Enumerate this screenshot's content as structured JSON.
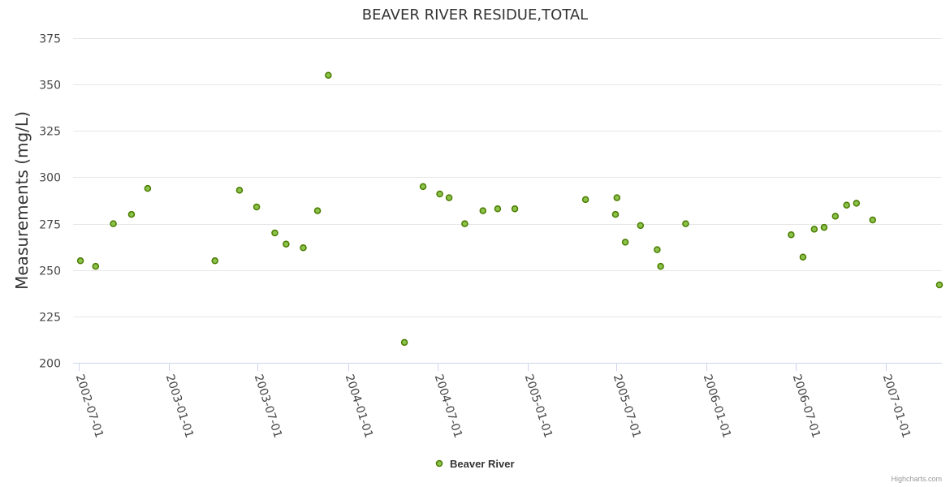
{
  "chart_data": {
    "type": "scatter",
    "title": "BEAVER RIVER RESIDUE,TOTAL",
    "xlabel": "",
    "ylabel": "Measurements (mg/L)",
    "ylim": [
      200,
      375
    ],
    "yticks": [
      200,
      225,
      250,
      275,
      300,
      325,
      350,
      375
    ],
    "xlim": [
      "2002-06-20",
      "2007-04-25"
    ],
    "xticks": [
      "2002-07-01",
      "2003-01-01",
      "2003-07-01",
      "2004-01-01",
      "2004-07-01",
      "2005-01-01",
      "2005-07-01",
      "2006-01-01",
      "2006-07-01",
      "2007-01-01"
    ],
    "grid": true,
    "legend_position": "bottom-center",
    "series": [
      {
        "name": "Beaver River",
        "color": "#8bc34a",
        "border_color": "#4a7a00",
        "points": [
          {
            "x": "2002-07-05",
            "y": 255
          },
          {
            "x": "2002-08-05",
            "y": 252
          },
          {
            "x": "2002-09-10",
            "y": 275
          },
          {
            "x": "2002-10-17",
            "y": 280
          },
          {
            "x": "2002-11-19",
            "y": 294
          },
          {
            "x": "2003-04-05",
            "y": 255
          },
          {
            "x": "2003-05-25",
            "y": 293
          },
          {
            "x": "2003-06-29",
            "y": 284
          },
          {
            "x": "2003-08-05",
            "y": 270
          },
          {
            "x": "2003-08-28",
            "y": 264
          },
          {
            "x": "2003-10-02",
            "y": 262
          },
          {
            "x": "2003-10-31",
            "y": 282
          },
          {
            "x": "2003-11-22",
            "y": 355
          },
          {
            "x": "2004-04-25",
            "y": 211
          },
          {
            "x": "2004-06-02",
            "y": 295
          },
          {
            "x": "2004-07-06",
            "y": 291
          },
          {
            "x": "2004-07-25",
            "y": 289
          },
          {
            "x": "2004-08-26",
            "y": 275
          },
          {
            "x": "2004-10-02",
            "y": 282
          },
          {
            "x": "2004-11-01",
            "y": 283
          },
          {
            "x": "2004-12-06",
            "y": 283
          },
          {
            "x": "2005-04-29",
            "y": 288
          },
          {
            "x": "2005-07-02",
            "y": 289
          },
          {
            "x": "2005-06-29",
            "y": 280
          },
          {
            "x": "2005-07-19",
            "y": 265
          },
          {
            "x": "2005-08-19",
            "y": 274
          },
          {
            "x": "2005-09-22",
            "y": 261
          },
          {
            "x": "2005-09-29",
            "y": 252
          },
          {
            "x": "2005-11-19",
            "y": 275
          },
          {
            "x": "2006-06-22",
            "y": 269
          },
          {
            "x": "2006-07-16",
            "y": 257
          },
          {
            "x": "2006-08-08",
            "y": 272
          },
          {
            "x": "2006-08-28",
            "y": 273
          },
          {
            "x": "2006-09-20",
            "y": 279
          },
          {
            "x": "2006-10-13",
            "y": 285
          },
          {
            "x": "2006-11-02",
            "y": 286
          },
          {
            "x": "2006-12-05",
            "y": 277
          },
          {
            "x": "2007-04-20",
            "y": 242
          }
        ]
      }
    ]
  },
  "credits": "Highcharts.com"
}
